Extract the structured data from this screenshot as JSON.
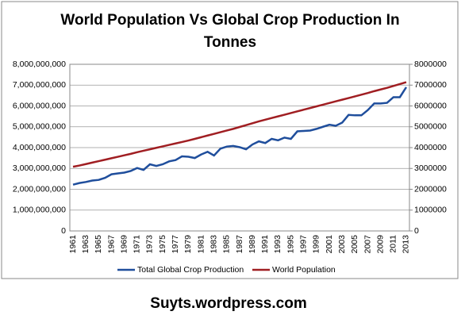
{
  "chart_data": {
    "type": "line",
    "title": "World Population Vs Global Crop Production In Tonnes",
    "footer": "Suyts.wordpress.com",
    "categories": [
      "1961",
      null,
      "1963",
      null,
      "1965",
      null,
      "1967",
      null,
      "1969",
      null,
      "1971",
      null,
      "1973",
      null,
      "1975",
      null,
      "1977",
      null,
      "1979",
      null,
      "1981",
      null,
      "1983",
      null,
      "1985",
      null,
      "1987",
      null,
      "1989",
      null,
      "1991",
      null,
      "1993",
      null,
      "1995",
      null,
      "1997",
      null,
      "1999",
      null,
      "2001",
      null,
      "2003",
      null,
      "2005",
      null,
      "2007",
      null,
      "2009",
      null,
      "2011",
      null,
      "2013"
    ],
    "series": [
      {
        "name": "Total Global Crop Production",
        "color": "#1f4e9c",
        "values": [
          2220000000,
          2300000000,
          2350000000,
          2420000000,
          2450000000,
          2550000000,
          2720000000,
          2760000000,
          2800000000,
          2880000000,
          3020000000,
          2930000000,
          3200000000,
          3120000000,
          3200000000,
          3340000000,
          3400000000,
          3580000000,
          3560000000,
          3500000000,
          3670000000,
          3800000000,
          3620000000,
          3950000000,
          4050000000,
          4080000000,
          4020000000,
          3920000000,
          4150000000,
          4300000000,
          4220000000,
          4420000000,
          4350000000,
          4480000000,
          4420000000,
          4780000000,
          4800000000,
          4820000000,
          4900000000,
          5000000000,
          5100000000,
          5050000000,
          5200000000,
          5570000000,
          5550000000,
          5550000000,
          5800000000,
          6120000000,
          6120000000,
          6150000000,
          6420000000,
          6420000000,
          6900000000
        ]
      },
      {
        "name": "World Population",
        "color": "#a01e22",
        "axis": "y2",
        "values": [
          3080000,
          3140000,
          3210000,
          3280000,
          3350000,
          3420000,
          3490000,
          3560000,
          3630000,
          3700000,
          3780000,
          3850000,
          3920000,
          3990000,
          4060000,
          4130000,
          4200000,
          4270000,
          4340000,
          4420000,
          4500000,
          4580000,
          4660000,
          4740000,
          4820000,
          4900000,
          4990000,
          5080000,
          5170000,
          5260000,
          5340000,
          5420000,
          5500000,
          5580000,
          5660000,
          5740000,
          5820000,
          5900000,
          5980000,
          6060000,
          6140000,
          6220000,
          6300000,
          6380000,
          6460000,
          6540000,
          6620000,
          6710000,
          6790000,
          6870000,
          6960000,
          7050000,
          7140000
        ]
      }
    ],
    "ylim": [
      0,
      8000000000
    ],
    "yticks": [
      0,
      {
        "value": 1000000000,
        "label": "1,000,000,000"
      },
      {
        "value": 2000000000,
        "label": "2,000,000,000"
      },
      {
        "value": 3000000000,
        "label": "3,000,000,000"
      },
      {
        "value": 4000000000,
        "label": "4,000,000,000"
      },
      {
        "value": 5000000000,
        "label": "5,000,000,000"
      },
      {
        "value": 6000000000,
        "label": "6,000,000,000"
      },
      {
        "value": 7000000000,
        "label": "7,000,000,000"
      },
      {
        "value": 8000000000,
        "label": "8,000,000,000"
      }
    ],
    "y2lim": [
      0,
      8000000
    ],
    "y2ticks": [
      0,
      1000000,
      2000000,
      3000000,
      4000000,
      5000000,
      6000000,
      7000000,
      8000000
    ],
    "grid": true,
    "legend": "bottom"
  }
}
